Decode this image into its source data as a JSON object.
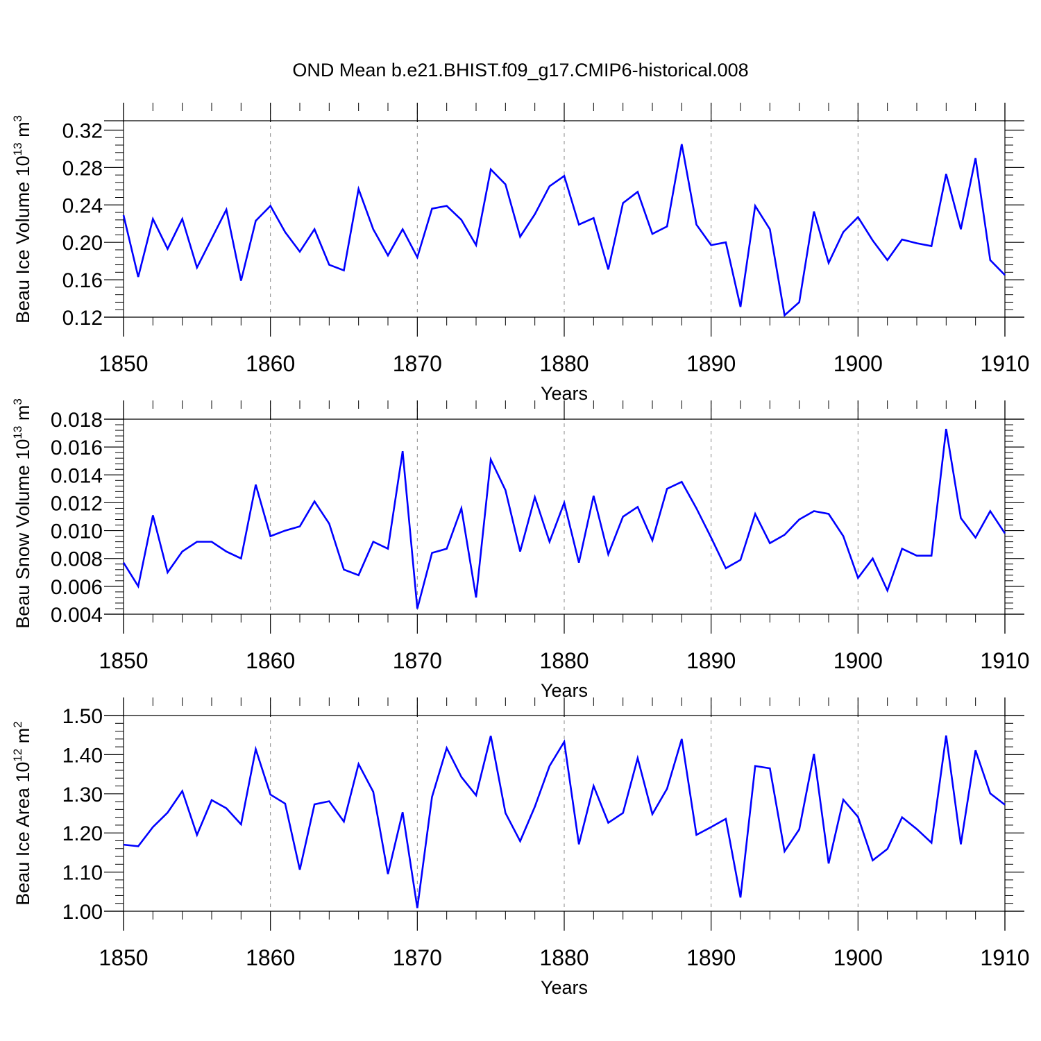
{
  "title": "OND Mean b.e21.BHIST.f09_g17.CMIP6-historical.008",
  "colors": {
    "line": "#0000ff",
    "axis": "#000000",
    "grid": "#888888",
    "background": "#ffffff"
  },
  "chart_data": [
    {
      "type": "line",
      "id": "ice-volume",
      "ylabel": "Beau Ice Volume",
      "yunit": {
        "base": "10",
        "exp": "13",
        "unit": "m",
        "unit_exp": "3"
      },
      "xlabel": "Years",
      "xlim": [
        1850,
        1910
      ],
      "ylim": [
        0.12,
        0.33
      ],
      "yticks": [
        0.12,
        0.16,
        0.2,
        0.24,
        0.28,
        0.32
      ],
      "ytick_labels": [
        "0.12",
        "0.16",
        "0.20",
        "0.24",
        "0.28",
        "0.32"
      ],
      "xticks": [
        1850,
        1860,
        1870,
        1880,
        1890,
        1900,
        1910
      ],
      "xtick_labels": [
        "1850",
        "1860",
        "1870",
        "1880",
        "1890",
        "1900",
        "1910"
      ],
      "grid_x": [
        1860,
        1870,
        1880,
        1890,
        1900
      ],
      "x_start": 1850,
      "values": [
        0.229,
        0.163,
        0.225,
        0.193,
        0.225,
        0.173,
        0.204,
        0.235,
        0.159,
        0.223,
        0.239,
        0.211,
        0.19,
        0.214,
        0.176,
        0.17,
        0.257,
        0.214,
        0.186,
        0.214,
        0.184,
        0.236,
        0.239,
        0.224,
        0.197,
        0.278,
        0.262,
        0.206,
        0.23,
        0.26,
        0.271,
        0.219,
        0.226,
        0.171,
        0.242,
        0.254,
        0.209,
        0.217,
        0.305,
        0.219,
        0.197,
        0.2,
        0.131,
        0.239,
        0.214,
        0.122,
        0.136,
        0.233,
        0.178,
        0.211,
        0.227,
        0.202,
        0.181,
        0.203,
        0.199,
        0.196,
        0.273,
        0.214,
        0.29,
        0.181,
        0.165
      ]
    },
    {
      "type": "line",
      "id": "snow-volume",
      "ylabel": "Beau Snow Volume",
      "yunit": {
        "base": "10",
        "exp": "13",
        "unit": "m",
        "unit_exp": "3"
      },
      "xlabel": "Years",
      "xlim": [
        1850,
        1910
      ],
      "ylim": [
        0.004,
        0.018
      ],
      "yticks": [
        0.004,
        0.006,
        0.008,
        0.01,
        0.012,
        0.014,
        0.016,
        0.018
      ],
      "ytick_labels": [
        "0.004",
        "0.006",
        "0.008",
        "0.010",
        "0.012",
        "0.014",
        "0.016",
        "0.018"
      ],
      "xticks": [
        1850,
        1860,
        1870,
        1880,
        1890,
        1900,
        1910
      ],
      "xtick_labels": [
        "1850",
        "1860",
        "1870",
        "1880",
        "1890",
        "1900",
        "1910"
      ],
      "grid_x": [
        1860,
        1870,
        1880,
        1890,
        1900
      ],
      "x_start": 1850,
      "values": [
        0.0077,
        0.006,
        0.0111,
        0.007,
        0.0085,
        0.0092,
        0.0092,
        0.0085,
        0.008,
        0.0133,
        0.0096,
        0.01,
        0.0103,
        0.0121,
        0.0105,
        0.0072,
        0.0068,
        0.0092,
        0.0087,
        0.0157,
        0.0044,
        0.0084,
        0.0087,
        0.0116,
        0.0052,
        0.0151,
        0.0129,
        0.0085,
        0.0124,
        0.0092,
        0.012,
        0.0077,
        0.0125,
        0.0083,
        0.011,
        0.0117,
        0.0093,
        0.013,
        0.0135,
        0.0116,
        0.0095,
        0.0073,
        0.0079,
        0.0112,
        0.0091,
        0.0097,
        0.0108,
        0.0114,
        0.0112,
        0.0096,
        0.0066,
        0.008,
        0.0057,
        0.0087,
        0.0082,
        0.0082,
        0.0173,
        0.0109,
        0.0095,
        0.0114,
        0.0098
      ]
    },
    {
      "type": "line",
      "id": "ice-area",
      "ylabel": "Beau Ice Area",
      "yunit": {
        "base": "10",
        "exp": "12",
        "unit": "m",
        "unit_exp": "2"
      },
      "xlabel": "Years",
      "xlim": [
        1850,
        1910
      ],
      "ylim": [
        1.0,
        1.5
      ],
      "yticks": [
        1.0,
        1.1,
        1.2,
        1.3,
        1.4,
        1.5
      ],
      "ytick_labels": [
        "1.00",
        "1.10",
        "1.20",
        "1.30",
        "1.40",
        "1.50"
      ],
      "xticks": [
        1850,
        1860,
        1870,
        1880,
        1890,
        1900,
        1910
      ],
      "xtick_labels": [
        "1850",
        "1860",
        "1870",
        "1880",
        "1890",
        "1900",
        "1910"
      ],
      "grid_x": [
        1860,
        1870,
        1880,
        1890,
        1900
      ],
      "x_start": 1850,
      "values": [
        1.17,
        1.166,
        1.215,
        1.252,
        1.307,
        1.195,
        1.284,
        1.263,
        1.222,
        1.414,
        1.298,
        1.275,
        1.106,
        1.273,
        1.281,
        1.229,
        1.376,
        1.305,
        1.095,
        1.253,
        1.008,
        1.292,
        1.417,
        1.343,
        1.296,
        1.448,
        1.251,
        1.179,
        1.267,
        1.371,
        1.433,
        1.171,
        1.32,
        1.226,
        1.251,
        1.391,
        1.248,
        1.313,
        1.44,
        1.195,
        1.215,
        1.236,
        1.035,
        1.371,
        1.365,
        1.153,
        1.209,
        1.402,
        1.122,
        1.285,
        1.241,
        1.13,
        1.159,
        1.24,
        1.21,
        1.175,
        1.449,
        1.171,
        1.411,
        1.301,
        1.272
      ]
    }
  ]
}
